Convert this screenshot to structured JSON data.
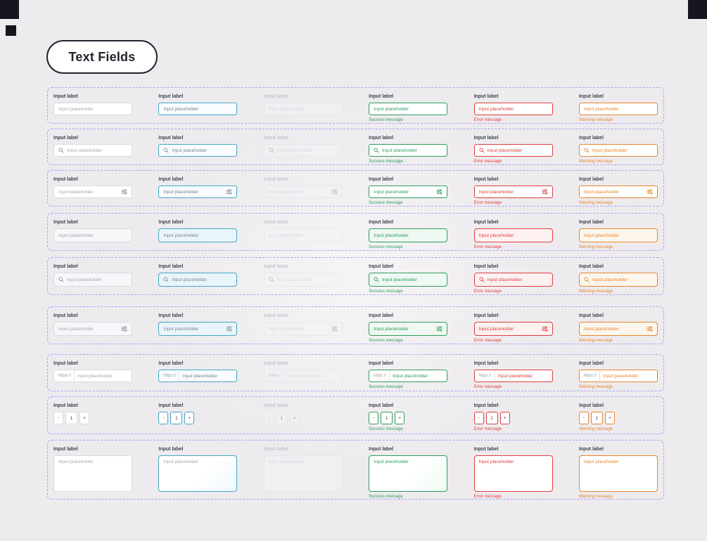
{
  "page": {
    "title": "Text Fields"
  },
  "strings": {
    "label": "Input label",
    "placeholder": "Input placeholder",
    "prefix": "https://",
    "stepper": {
      "minus": "-",
      "value": "1",
      "plus": "+"
    }
  },
  "states": [
    {
      "id": "default",
      "message": ""
    },
    {
      "id": "focus",
      "message": ""
    },
    {
      "id": "disabled",
      "message": ""
    },
    {
      "id": "success",
      "message": "Success message"
    },
    {
      "id": "error",
      "message": "Error message"
    },
    {
      "id": "warning",
      "message": "Warning message"
    }
  ],
  "rows": [
    {
      "kind": "text",
      "size": "small"
    },
    {
      "kind": "text-search",
      "size": "small"
    },
    {
      "kind": "text-trailing",
      "size": "small"
    },
    {
      "kind": "text",
      "size": "medium"
    },
    {
      "kind": "text-search",
      "size": "medium"
    },
    {
      "kind": "text-trailing",
      "size": "medium"
    },
    {
      "kind": "text-prefix",
      "size": "small"
    },
    {
      "kind": "stepper",
      "size": "small"
    },
    {
      "kind": "textarea",
      "size": "large"
    }
  ],
  "colors": {
    "background": "#edebee",
    "component_outline": "#7b61ff",
    "focus": "#45a7c7",
    "success": "#2e9e5b",
    "error": "#e03e3e",
    "warning": "#e8862c"
  }
}
